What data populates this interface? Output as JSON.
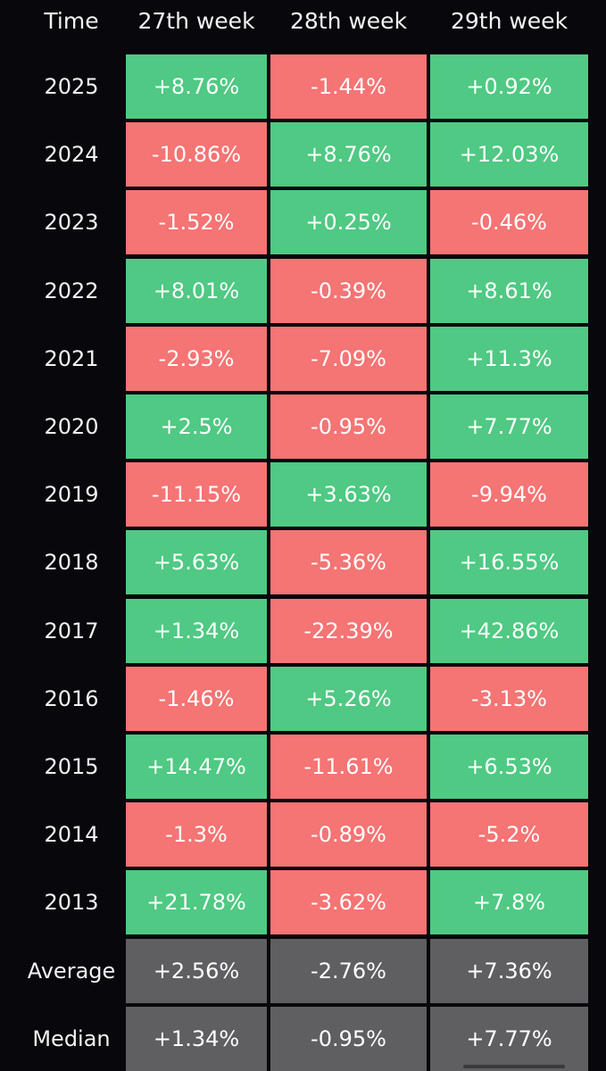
{
  "header": {
    "time_label": "Time",
    "col1": "27th week",
    "col2": "28th week",
    "col3": "29th week"
  },
  "colors": {
    "positive": "#4fc983",
    "negative": "#f57474",
    "summary": "#5f5f61",
    "background": "#07070c"
  },
  "rows": [
    {
      "label": "2025",
      "values": [
        "+8.76%",
        "-1.44%",
        "+0.92%"
      ]
    },
    {
      "label": "2024",
      "values": [
        "-10.86%",
        "+8.76%",
        "+12.03%"
      ]
    },
    {
      "label": "2023",
      "values": [
        "-1.52%",
        "+0.25%",
        "-0.46%"
      ]
    },
    {
      "label": "2022",
      "values": [
        "+8.01%",
        "-0.39%",
        "+8.61%"
      ]
    },
    {
      "label": "2021",
      "values": [
        "-2.93%",
        "-7.09%",
        "+11.3%"
      ]
    },
    {
      "label": "2020",
      "values": [
        "+2.5%",
        "-0.95%",
        "+7.77%"
      ]
    },
    {
      "label": "2019",
      "values": [
        "-11.15%",
        "+3.63%",
        "-9.94%"
      ]
    },
    {
      "label": "2018",
      "values": [
        "+5.63%",
        "-5.36%",
        "+16.55%"
      ]
    },
    {
      "label": "2017",
      "values": [
        "+1.34%",
        "-22.39%",
        "+42.86%"
      ]
    },
    {
      "label": "2016",
      "values": [
        "-1.46%",
        "+5.26%",
        "-3.13%"
      ]
    },
    {
      "label": "2015",
      "values": [
        "+14.47%",
        "-11.61%",
        "+6.53%"
      ]
    },
    {
      "label": "2014",
      "values": [
        "-1.3%",
        "-0.89%",
        "-5.2%"
      ]
    },
    {
      "label": "2013",
      "values": [
        "+21.78%",
        "-3.62%",
        "+7.8%"
      ]
    }
  ],
  "summary": [
    {
      "label": "Average",
      "values": [
        "+2.56%",
        "-2.76%",
        "+7.36%"
      ]
    },
    {
      "label": "Median",
      "values": [
        "+1.34%",
        "-0.95%",
        "+7.77%"
      ]
    }
  ]
}
